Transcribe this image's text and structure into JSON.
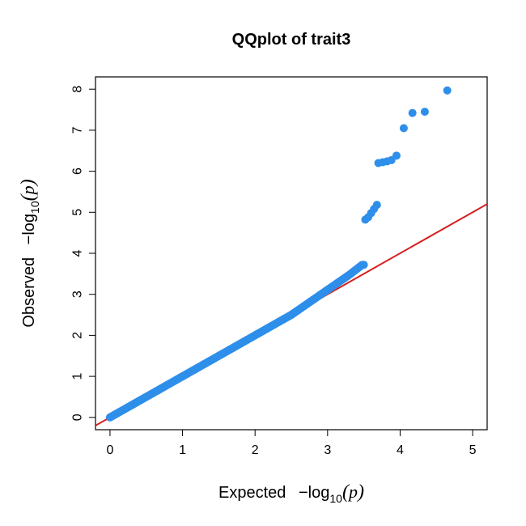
{
  "chart_data": {
    "type": "scatter",
    "title": "QQplot of trait3",
    "xlabel": {
      "prefix": "Expected",
      "minus": "−",
      "log": "log",
      "sub": "10",
      "open": "(",
      "var": "p",
      "close": ")"
    },
    "ylabel": {
      "prefix": "Observed",
      "minus": "−",
      "log": "log",
      "sub": "10",
      "open": "(",
      "var": "p",
      "close": ")"
    },
    "xlim": [
      -0.2,
      5.2
    ],
    "ylim": [
      -0.3,
      8.3
    ],
    "x_ticks": [
      "0",
      "1",
      "2",
      "3",
      "4",
      "5"
    ],
    "y_ticks": [
      "0",
      "1",
      "2",
      "3",
      "4",
      "5",
      "6",
      "7",
      "8"
    ],
    "point_color": "#2E8FEA",
    "reference_line": {
      "color": "#D62020",
      "slope": 1,
      "intercept": 0
    },
    "series": [
      {
        "points_dense_diagonal": {
          "x_range": [
            0,
            3.5
          ],
          "y_range": [
            0,
            3.72
          ]
        },
        "points": [
          [
            3.52,
            4.82
          ],
          [
            3.56,
            4.88
          ],
          [
            3.6,
            4.98
          ],
          [
            3.64,
            5.08
          ],
          [
            3.68,
            5.18
          ],
          [
            3.7,
            6.2
          ],
          [
            3.76,
            6.22
          ],
          [
            3.82,
            6.24
          ],
          [
            3.88,
            6.27
          ],
          [
            3.95,
            6.38
          ],
          [
            4.05,
            7.05
          ],
          [
            4.17,
            7.42
          ],
          [
            4.34,
            7.45
          ],
          [
            4.65,
            7.97
          ]
        ]
      }
    ]
  }
}
